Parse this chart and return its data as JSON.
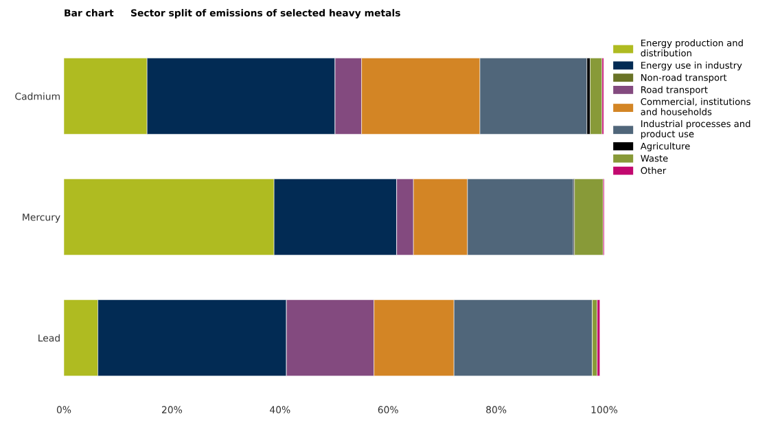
{
  "chart_data": {
    "type": "bar",
    "orientation": "horizontal",
    "stacked": true,
    "title": "Bar chart",
    "subtitle": "Sector split of emissions of selected heavy metals",
    "categories": [
      "Cadmium",
      "Mercury",
      "Lead"
    ],
    "series": [
      {
        "name": "Energy production and distribution",
        "color": "#afbb21",
        "values": [
          15.4,
          38.9,
          6.3
        ]
      },
      {
        "name": "Energy use in industry",
        "color": "#022b54",
        "values": [
          34.8,
          22.7,
          34.9
        ]
      },
      {
        "name": "Non-road transport",
        "color": "#697327",
        "values": [
          0,
          0,
          0
        ]
      },
      {
        "name": "Road transport",
        "color": "#834a7f",
        "values": [
          4.9,
          3.1,
          16.2
        ]
      },
      {
        "name": "Commercial, institutions and households",
        "color": "#d38525",
        "values": [
          21.9,
          10.0,
          14.8
        ]
      },
      {
        "name": "Industrial processes and product use",
        "color": "#50667a",
        "values": [
          19.8,
          19.6,
          25.6
        ]
      },
      {
        "name": "Agriculture",
        "color": "#000000",
        "values": [
          0.6,
          0.2,
          0
        ]
      },
      {
        "name": "Waste",
        "color": "#889a38",
        "values": [
          2.2,
          5.3,
          0.9
        ]
      },
      {
        "name": "Other",
        "color": "#c2086f",
        "values": [
          0.3,
          0.2,
          0.5
        ]
      }
    ],
    "xlim": [
      0,
      100
    ],
    "xticks": [
      {
        "value": 0,
        "label": "0%"
      },
      {
        "value": 20,
        "label": "20%"
      },
      {
        "value": 40,
        "label": "40%"
      },
      {
        "value": 60,
        "label": "60%"
      },
      {
        "value": 80,
        "label": "80%"
      },
      {
        "value": 100,
        "label": "100%"
      }
    ],
    "grid": false,
    "legend": "right"
  }
}
